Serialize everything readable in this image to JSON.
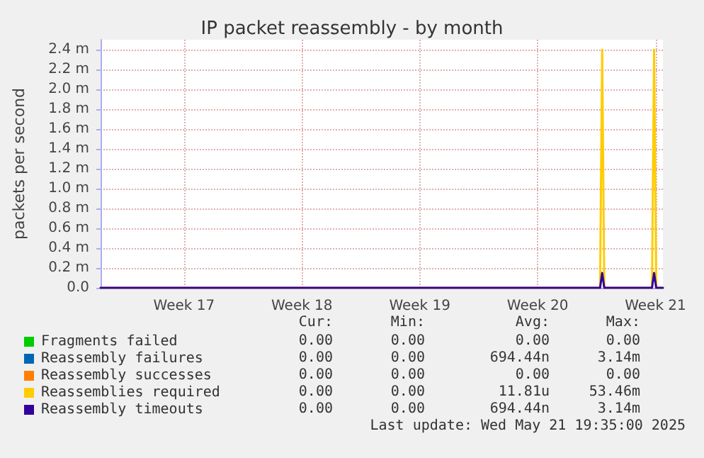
{
  "chart_data": {
    "type": "line",
    "title": "IP packet reassembly - by month",
    "ylabel": "packets per second",
    "xlim": [
      "2025-04-18T10:00",
      "2025-05-21T19:35"
    ],
    "xticks": [
      {
        "value": "2025-04-23T09:00",
        "label": "Week 17"
      },
      {
        "value": "2025-04-30T09:00",
        "label": "Week 18"
      },
      {
        "value": "2025-05-07T09:00",
        "label": "Week 19"
      },
      {
        "value": "2025-05-14T09:00",
        "label": "Week 20"
      },
      {
        "value": "2025-05-21T09:00",
        "label": "Week 21"
      }
    ],
    "ylim": [
      0,
      2.5
    ],
    "yticks": [
      {
        "value": 0,
        "label": "0.0"
      },
      {
        "value": 0.2,
        "label": "0.2 m"
      },
      {
        "value": 0.4,
        "label": "0.4 m"
      },
      {
        "value": 0.6,
        "label": "0.6 m"
      },
      {
        "value": 0.8,
        "label": "0.8 m"
      },
      {
        "value": 1.0,
        "label": "1.0 m"
      },
      {
        "value": 1.2,
        "label": "1.2 m"
      },
      {
        "value": 1.4,
        "label": "1.4 m"
      },
      {
        "value": 1.6,
        "label": "1.6 m"
      },
      {
        "value": 1.8,
        "label": "1.8 m"
      },
      {
        "value": 2.0,
        "label": "2.0 m"
      },
      {
        "value": 2.2,
        "label": "2.2 m"
      },
      {
        "value": 2.4,
        "label": "2.4 m"
      }
    ],
    "x": [
      "2025-04-18T10:00",
      "2025-05-18T02:00",
      "2025-05-18T05:00",
      "2025-05-18T08:00",
      "2025-05-21T04:00",
      "2025-05-21T07:00",
      "2025-05-21T10:00",
      "2025-05-21T19:35"
    ],
    "series": [
      {
        "name": "Fragments failed",
        "color": "#00cc00",
        "values": [
          null,
          null,
          null,
          null,
          null,
          null,
          null,
          null
        ]
      },
      {
        "name": "Reassembly failures",
        "color": "#0066b3",
        "values": [
          null,
          null,
          null,
          null,
          null,
          null,
          null,
          null
        ]
      },
      {
        "name": "Reassembly successes",
        "color": "#ff8000",
        "values": [
          null,
          null,
          null,
          null,
          null,
          null,
          null,
          null
        ]
      },
      {
        "name": "Reassemblies required",
        "color": "#ffcc00",
        "values": [
          0,
          0,
          2.4,
          0,
          0,
          2.4,
          0,
          0
        ]
      },
      {
        "name": "Reassembly timeouts",
        "color": "#330099",
        "values": [
          0,
          0,
          0.15,
          0,
          0,
          0.15,
          0,
          0
        ]
      }
    ],
    "annotations": [
      "Cur:",
      "Min:",
      "Avg:",
      "Max:",
      "0.00",
      "0.00",
      "0.00",
      "0.00",
      "0.00",
      "0.00",
      "694.44n",
      "3.14m",
      "0.00",
      "0.00",
      "0.00",
      "0.00",
      "0.00",
      "0.00",
      "11.81u",
      "53.46m",
      "0.00",
      "0.00",
      "694.44n",
      "3.14m",
      "Last update: Wed May 21 19:35:00 2025"
    ],
    "grid": true,
    "legend": "bottom",
    "line_style": "solid",
    "marker": "none"
  }
}
